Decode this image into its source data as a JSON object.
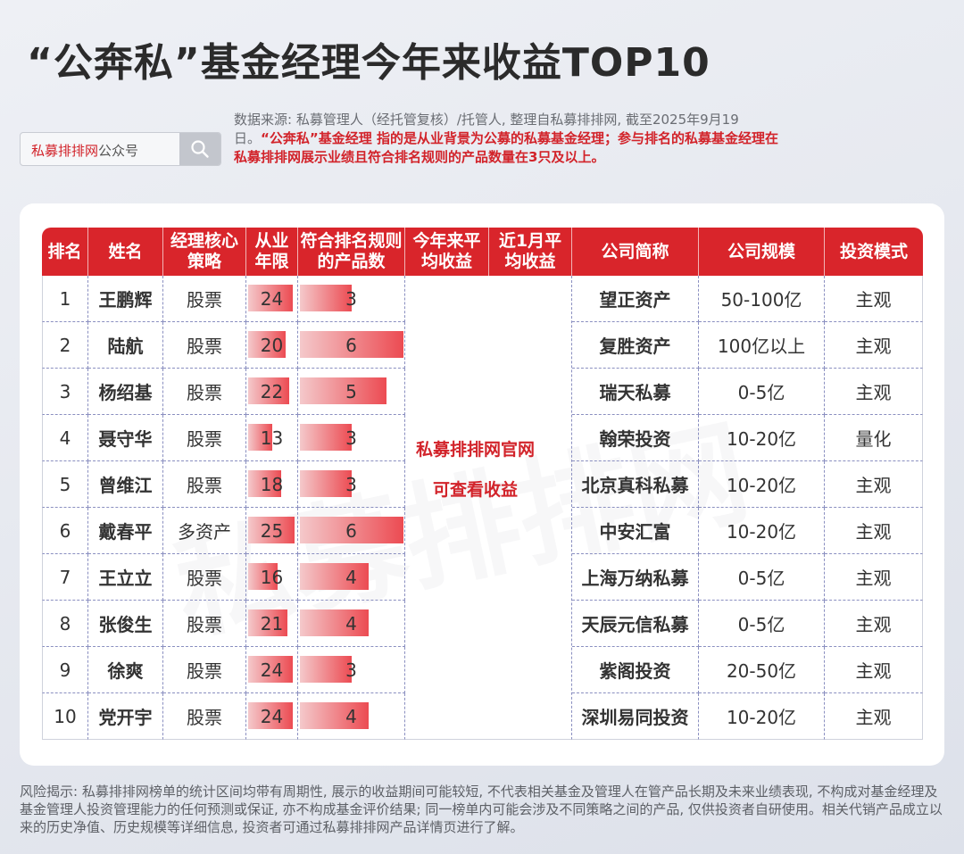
{
  "title": "“公奔私”基金经理今年来收益TOP10",
  "search": {
    "brand": "私募排排网",
    "suffix": "公众号",
    "icon": "search-icon"
  },
  "source": {
    "normal": "数据来源: 私募管理人（经托管复核）/托管人, 整理自私募排排网, 截至2025年9月19日。",
    "emphasis": "“公奔私”基金经理 指的是从业背景为公募的私募基金经理；参与排名的私募基金经理在私募排排网展示业绩且符合排名规则的产品数量在3只及以上。"
  },
  "table": {
    "headers": [
      "排名",
      "姓名",
      "经理核心策略",
      "从业年限",
      "符合排名规则的产品数",
      "今年来平均收益",
      "近1月平均收益",
      "公司简称",
      "公司规模",
      "投资模式"
    ],
    "notice_line1": "私募排排网官网",
    "notice_line2": "可查看收益",
    "rows": [
      {
        "rank": "1",
        "name": "王鹏辉",
        "strategy": "股票",
        "years": "24",
        "count": "3",
        "company": "望正资产",
        "scale": "50-100亿",
        "mode": "主观"
      },
      {
        "rank": "2",
        "name": "陆航",
        "strategy": "股票",
        "years": "20",
        "count": "6",
        "company": "复胜资产",
        "scale": "100亿以上",
        "mode": "主观"
      },
      {
        "rank": "3",
        "name": "杨绍基",
        "strategy": "股票",
        "years": "22",
        "count": "5",
        "company": "瑞天私募",
        "scale": "0-5亿",
        "mode": "主观"
      },
      {
        "rank": "4",
        "name": "聂守华",
        "strategy": "股票",
        "years": "13",
        "count": "3",
        "company": "翰荣投资",
        "scale": "10-20亿",
        "mode": "量化"
      },
      {
        "rank": "5",
        "name": "曾维江",
        "strategy": "股票",
        "years": "18",
        "count": "3",
        "company": "北京真科私募",
        "scale": "10-20亿",
        "mode": "主观"
      },
      {
        "rank": "6",
        "name": "戴春平",
        "strategy": "多资产",
        "years": "25",
        "count": "6",
        "company": "中安汇富",
        "scale": "10-20亿",
        "mode": "主观"
      },
      {
        "rank": "7",
        "name": "王立立",
        "strategy": "股票",
        "years": "16",
        "count": "4",
        "company": "上海万纳私募",
        "scale": "0-5亿",
        "mode": "主观"
      },
      {
        "rank": "8",
        "name": "张俊生",
        "strategy": "股票",
        "years": "21",
        "count": "4",
        "company": "天辰元信私募",
        "scale": "0-5亿",
        "mode": "主观"
      },
      {
        "rank": "9",
        "name": "徐爽",
        "strategy": "股票",
        "years": "24",
        "count": "3",
        "company": "紫阁投资",
        "scale": "20-50亿",
        "mode": "主观"
      },
      {
        "rank": "10",
        "name": "党开宇",
        "strategy": "股票",
        "years": "24",
        "count": "4",
        "company": "深圳易同投资",
        "scale": "10-20亿",
        "mode": "主观"
      }
    ]
  },
  "watermark": "私募排排网",
  "risk": "风险揭示: 私募排排网榜单的统计区间均带有周期性, 展示的收益期间可能较短, 不代表相关基金及管理人在管产品长期及未来业绩表现, 不构成对基金经理及基金管理人投资管理能力的任何预测或保证, 亦不构成基金评价结果; 同一榜单内可能会涉及不同策略之间的产品, 仅供投资者自研使用。相关代销产品成立以来的历史净值、历史规模等详细信息, 投资者可通过私募排排网产品详情页进行了解。",
  "colors": {
    "accent": "#d9252b",
    "bar_start": "#f4c9cb",
    "bar_end": "#ec4b52"
  }
}
